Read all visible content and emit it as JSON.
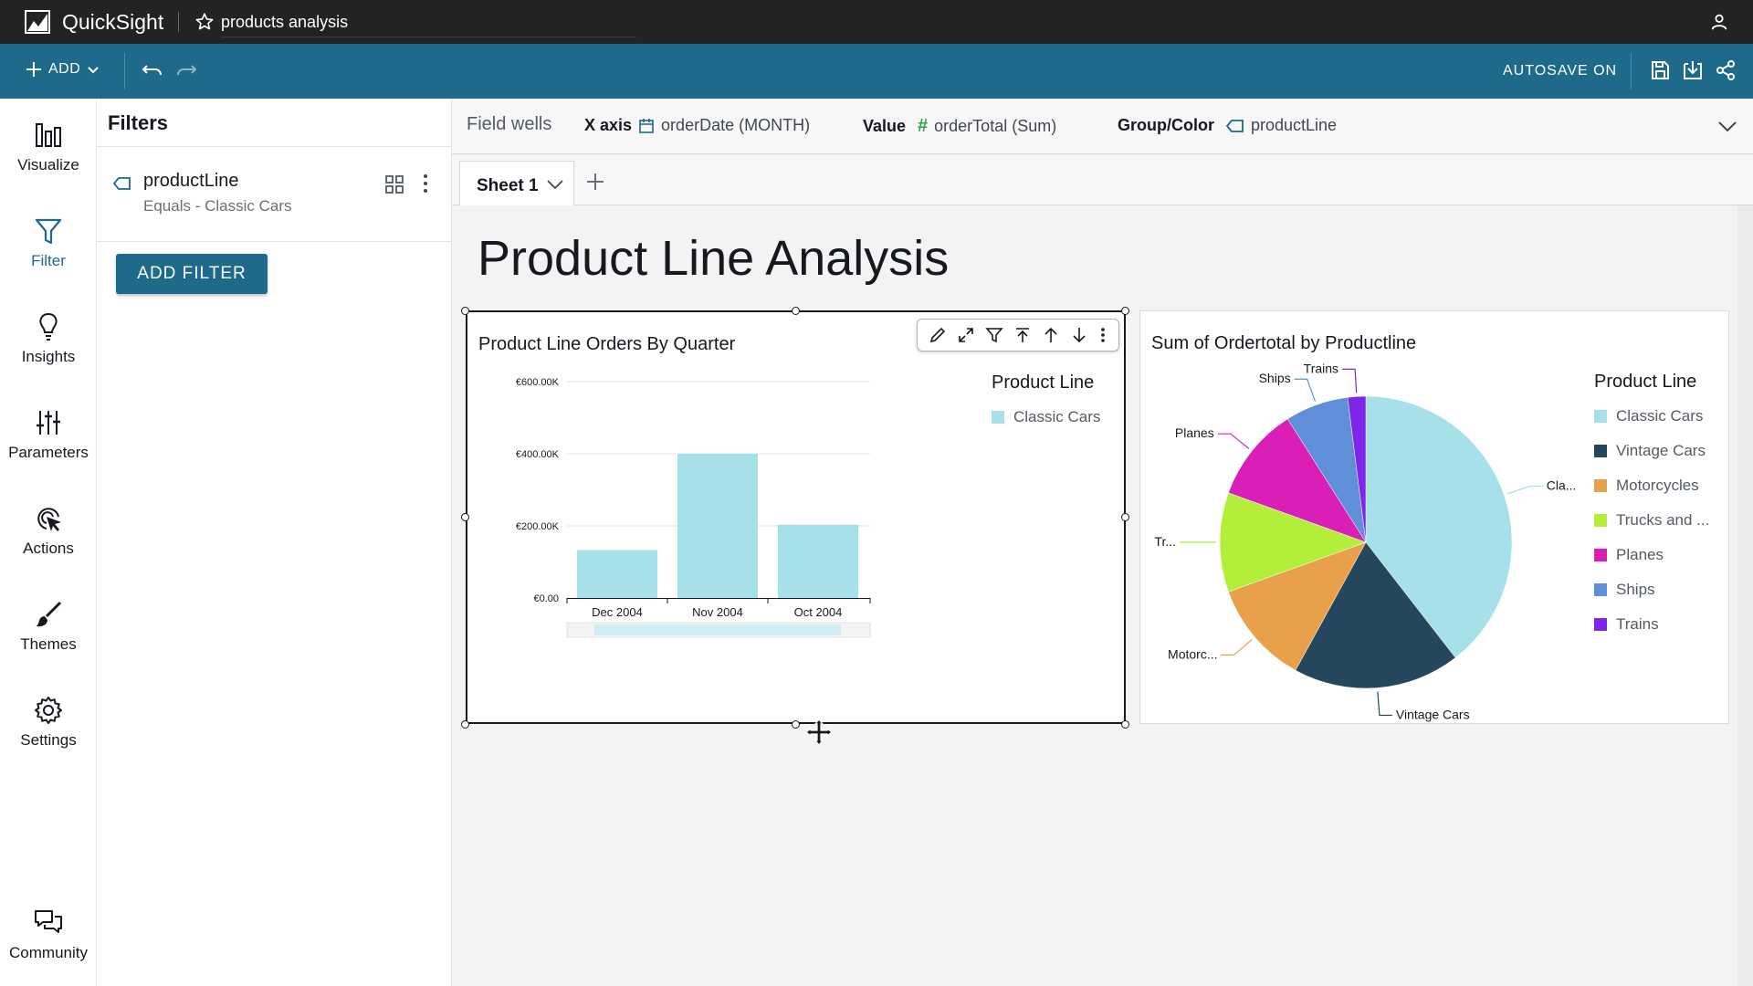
{
  "app": {
    "brand": "QuickSight",
    "analysis_name": "products analysis"
  },
  "toolbar": {
    "add_label": "ADD",
    "autosave_label": "AUTOSAVE ON"
  },
  "rail": {
    "items": [
      {
        "label": "Visualize",
        "icon": "bar-chart-icon"
      },
      {
        "label": "Filter",
        "icon": "filter-icon"
      },
      {
        "label": "Insights",
        "icon": "lightbulb-icon"
      },
      {
        "label": "Parameters",
        "icon": "sliders-icon"
      },
      {
        "label": "Actions",
        "icon": "cursor-click-icon"
      },
      {
        "label": "Themes",
        "icon": "brush-icon"
      },
      {
        "label": "Settings",
        "icon": "gear-icon"
      }
    ],
    "community_label": "Community"
  },
  "filters": {
    "heading": "Filters",
    "items": [
      {
        "field": "productLine",
        "condition": "Equals - Classic Cars"
      }
    ],
    "add_button": "ADD FILTER"
  },
  "field_wells": {
    "label": "Field wells",
    "x_axis": {
      "label": "X axis",
      "value": "orderDate (MONTH)"
    },
    "value": {
      "label": "Value",
      "value": "orderTotal (Sum)"
    },
    "group": {
      "label": "Group/Color",
      "value": "productLine"
    }
  },
  "sheets": {
    "tabs": [
      {
        "label": "Sheet 1"
      }
    ]
  },
  "sheet_title": "Product Line Analysis",
  "colors": {
    "accent": "#1e6a8a",
    "topbar": "#232323"
  },
  "visual1": {
    "title": "Product Line Orders By Quarter",
    "legend_title": "Product Line",
    "legend": [
      {
        "label": "Classic Cars",
        "color": "#a6e1ea"
      }
    ]
  },
  "visual2": {
    "title": "Sum of Ordertotal by Productline",
    "legend_title": "Product Line",
    "legend": [
      {
        "label": "Classic Cars",
        "color": "#a6e1ea"
      },
      {
        "label": "Vintage Cars",
        "color": "#25475e"
      },
      {
        "label": "Motorcycles",
        "color": "#e9a04b"
      },
      {
        "label": "Trucks and ...",
        "color": "#b3ef3a"
      },
      {
        "label": "Planes",
        "color": "#d91fb6"
      },
      {
        "label": "Ships",
        "color": "#5f8fd9"
      },
      {
        "label": "Trains",
        "color": "#7d25e8"
      }
    ]
  },
  "chart_data": [
    {
      "type": "bar",
      "title": "Product Line Orders By Quarter",
      "categories": [
        "Dec 2004",
        "Nov 2004",
        "Oct 2004"
      ],
      "series": [
        {
          "name": "Classic Cars",
          "values": [
            133000,
            400000,
            203000
          ]
        }
      ],
      "ylim": [
        0,
        600000
      ],
      "yticks": [
        "€0.00",
        "€200.00K",
        "€400.00K",
        "€600.00K"
      ],
      "ytick_values": [
        0,
        200000,
        400000,
        600000
      ],
      "color": "#a6e1ea",
      "grid": true,
      "legend": "right"
    },
    {
      "type": "pie",
      "title": "Sum of Ordertotal by Productline",
      "slices": [
        {
          "label": "Cla...",
          "value": 39.5,
          "color": "#a6e1ea"
        },
        {
          "label": "Vintage Cars",
          "value": 18.5,
          "color": "#25475e"
        },
        {
          "label": "Motorc...",
          "value": 11.5,
          "color": "#e9a04b"
        },
        {
          "label": "Tr...",
          "value": 11.0,
          "color": "#b3ef3a"
        },
        {
          "label": "Planes",
          "value": 10.5,
          "color": "#d91fb6"
        },
        {
          "label": "Ships",
          "value": 7.0,
          "color": "#5f8fd9"
        },
        {
          "label": "Trains",
          "value": 2.0,
          "color": "#7d25e8"
        }
      ],
      "legend": "right"
    }
  ]
}
